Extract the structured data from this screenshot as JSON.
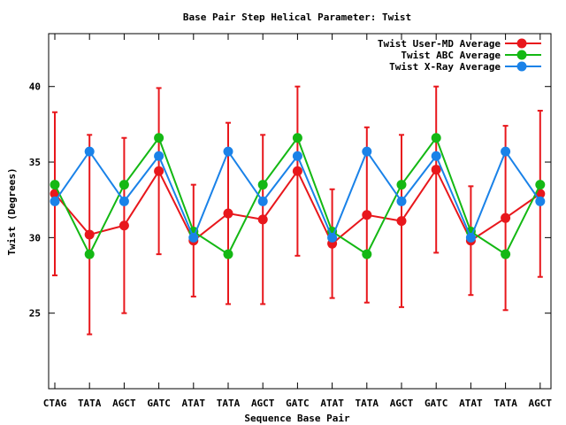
{
  "chart_data": {
    "type": "line",
    "title": "Base Pair Step Helical Parameter: Twist",
    "xlabel": "Sequence Base Pair",
    "ylabel": "Twist (Degrees)",
    "ylim": [
      20,
      43.5
    ],
    "yticks": [
      25,
      30,
      35,
      40
    ],
    "grid": false,
    "legend_position": "top-right",
    "categories": [
      "CTAG",
      "TATA",
      "AGCT",
      "GATC",
      "ATAT",
      "TATA",
      "AGCT",
      "GATC",
      "ATAT",
      "TATA",
      "AGCT",
      "GATC",
      "ATAT",
      "TATA",
      "AGCT"
    ],
    "series": [
      {
        "name": "Twist User-MD Average",
        "color": "#e8171c",
        "values": [
          32.9,
          30.2,
          30.8,
          34.4,
          29.8,
          31.6,
          31.2,
          34.4,
          29.6,
          31.5,
          31.1,
          34.5,
          29.8,
          31.3,
          32.9
        ],
        "error": [
          5.4,
          6.6,
          5.8,
          5.5,
          3.7,
          6.0,
          5.6,
          5.6,
          3.6,
          5.8,
          5.7,
          5.5,
          3.6,
          6.1,
          5.5
        ]
      },
      {
        "name": "Twist ABC Average",
        "color": "#14b814",
        "values": [
          33.5,
          28.9,
          33.5,
          36.6,
          30.4,
          28.9,
          33.5,
          36.6,
          30.4,
          28.9,
          33.5,
          36.6,
          30.4,
          28.9,
          33.5
        ]
      },
      {
        "name": "Twist X-Ray Average",
        "color": "#1a82e8",
        "values": [
          32.4,
          35.7,
          32.4,
          35.4,
          30.0,
          35.7,
          32.4,
          35.4,
          30.0,
          35.7,
          32.4,
          35.4,
          30.0,
          35.7,
          32.4
        ]
      }
    ]
  }
}
